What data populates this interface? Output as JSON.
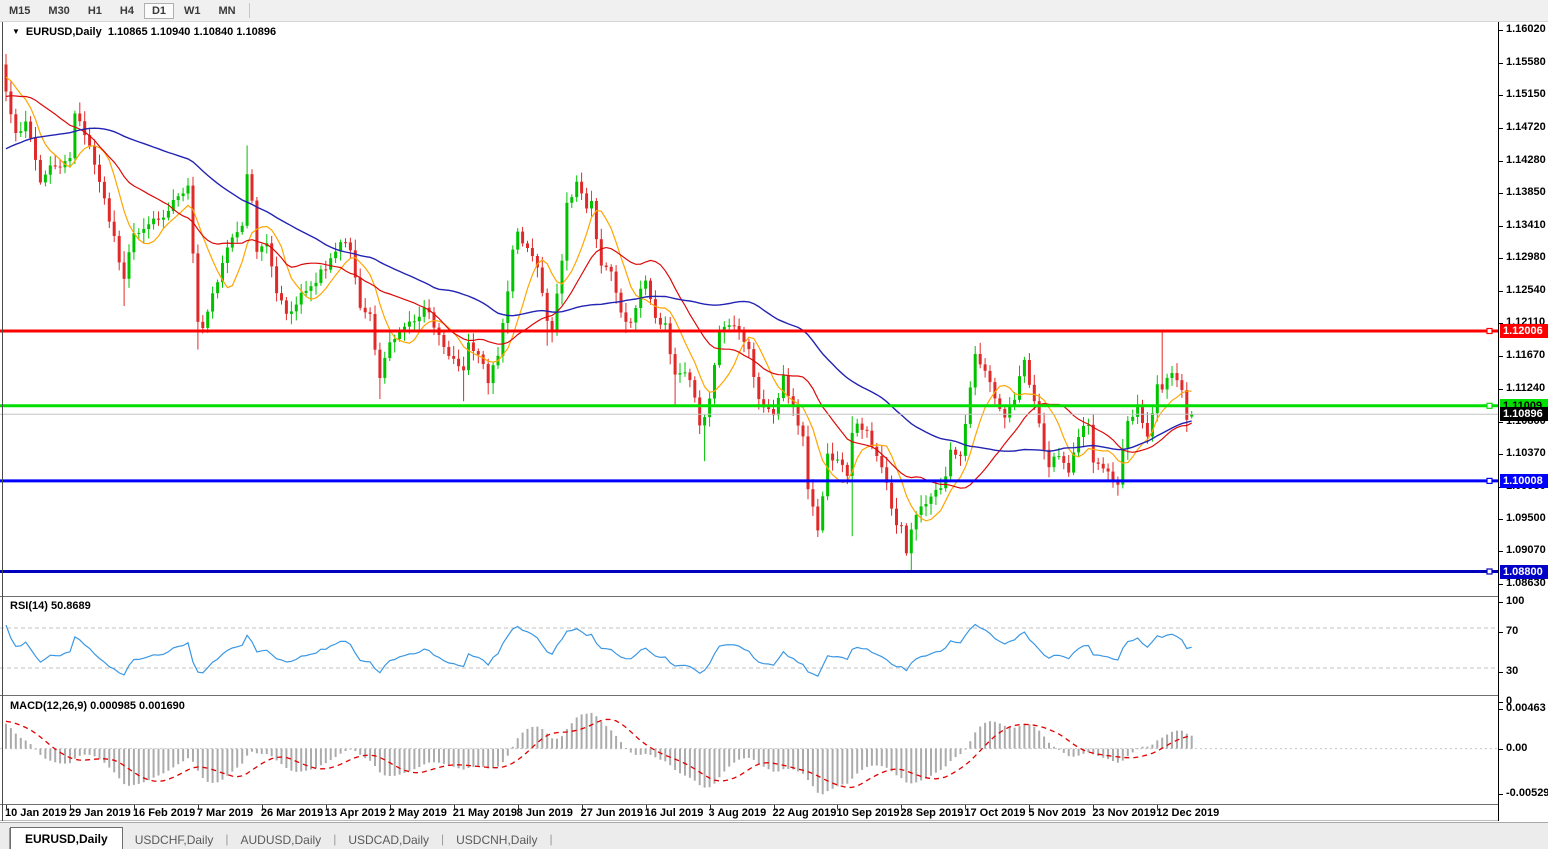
{
  "toolbar": {
    "timeframes": [
      {
        "label": "M15",
        "active": false
      },
      {
        "label": "M30",
        "active": false
      },
      {
        "label": "H1",
        "active": false
      },
      {
        "label": "H4",
        "active": false
      },
      {
        "label": "D1",
        "active": true
      },
      {
        "label": "W1",
        "active": false
      },
      {
        "label": "MN",
        "active": false
      }
    ]
  },
  "header": {
    "dropdown": "▼",
    "symbol": "EURUSD,Daily",
    "quotes": "1.10865 1.10940 1.10840 1.10896"
  },
  "tabs": [
    {
      "label": "EURUSD,Daily",
      "active": true
    },
    {
      "label": "USDCHF,Daily",
      "active": false
    },
    {
      "label": "AUDUSD,Daily",
      "active": false
    },
    {
      "label": "USDCAD,Daily",
      "active": false
    },
    {
      "label": "USDCNH,Daily",
      "active": false
    }
  ],
  "chart_data": {
    "type": "candlestick",
    "symbol": "EURUSD",
    "timeframe": "Daily",
    "ohlc_display": {
      "open": "1.10865",
      "high": "1.10940",
      "low": "1.10840",
      "close": "1.10896"
    },
    "price_axis": {
      "top_price": 1.1602,
      "bottom_price": 1.0863,
      "ticks": [
        1.1602,
        1.1558,
        1.1515,
        1.1472,
        1.1428,
        1.1385,
        1.1341,
        1.1298,
        1.1254,
        1.1211,
        1.1167,
        1.1124,
        1.108,
        1.1037,
        1.0993,
        1.095,
        1.0907,
        1.0863
      ]
    },
    "time_axis": {
      "labels": [
        {
          "text": "10 Jan 2019",
          "index": 0
        },
        {
          "text": "29 Jan 2019",
          "index": 13
        },
        {
          "text": "16 Feb 2019",
          "index": 26
        },
        {
          "text": "7 Mar 2019",
          "index": 39
        },
        {
          "text": "26 Mar 2019",
          "index": 52
        },
        {
          "text": "13 Apr 2019",
          "index": 65
        },
        {
          "text": "2 May 2019",
          "index": 78
        },
        {
          "text": "21 May 2019",
          "index": 91
        },
        {
          "text": "8 Jun 2019",
          "index": 104
        },
        {
          "text": "27 Jun 2019",
          "index": 117
        },
        {
          "text": "16 Jul 2019",
          "index": 130
        },
        {
          "text": "3 Aug 2019",
          "index": 143
        },
        {
          "text": "22 Aug 2019",
          "index": 156
        },
        {
          "text": "10 Sep 2019",
          "index": 169
        },
        {
          "text": "28 Sep 2019",
          "index": 182
        },
        {
          "text": "17 Oct 2019",
          "index": 195
        },
        {
          "text": "5 Nov 2019",
          "index": 208
        },
        {
          "text": "23 Nov 2019",
          "index": 221
        },
        {
          "text": "12 Dec 2019",
          "index": 234
        }
      ]
    },
    "horizontal_lines": [
      {
        "price": 1.12006,
        "color": "#FF0000",
        "badge": "1.12006",
        "badge_bg": "#FF0000",
        "text_color": "#FFFFFF"
      },
      {
        "price": 1.11009,
        "color": "#00DF00",
        "badge": "1.11009",
        "badge_bg": "#00DF00",
        "text_color": "#000000"
      },
      {
        "price": 1.10008,
        "color": "#0000FF",
        "badge": "1.10008",
        "badge_bg": "#0000FF",
        "text_color": "#FFFFFF"
      },
      {
        "price": 1.088,
        "color": "#0000BE",
        "badge": "1.08800",
        "badge_bg": "#0000C8",
        "text_color": "#FFFFFF"
      }
    ],
    "current_price": {
      "value": 1.10896,
      "badge": "1.10896",
      "line_color": "#C4C4C4",
      "badge_bg": "#000000",
      "text_color": "#FFFFFF"
    },
    "moving_averages": [
      {
        "period": 8,
        "color": "#FFA500"
      },
      {
        "period": 20,
        "color": "#DC0A0A"
      },
      {
        "period": 50,
        "color": "#2323B4"
      }
    ],
    "candles": {
      "count": 242,
      "bull_color": "#00C300",
      "bear_color": "#E02A2A",
      "first_open": 1.1556,
      "last_candle": [
        1.10865,
        1.1094,
        1.1084,
        1.10896
      ],
      "anchors": [
        [
          0,
          1.152
        ],
        [
          2,
          1.1465
        ],
        [
          4,
          1.1478
        ],
        [
          7,
          1.14
        ],
        [
          10,
          1.1422
        ],
        [
          13,
          1.1432
        ],
        [
          14,
          1.149
        ],
        [
          16,
          1.1462
        ],
        [
          19,
          1.14
        ],
        [
          22,
          1.1325
        ],
        [
          24,
          1.1268
        ],
        [
          26,
          1.1333
        ],
        [
          29,
          1.1342
        ],
        [
          31,
          1.1348
        ],
        [
          33,
          1.1362
        ],
        [
          36,
          1.1386
        ],
        [
          37,
          1.1396
        ],
        [
          38,
          1.1305
        ],
        [
          39,
          1.1215
        ],
        [
          40,
          1.1205
        ],
        [
          42,
          1.125
        ],
        [
          44,
          1.1292
        ],
        [
          46,
          1.1325
        ],
        [
          48,
          1.1342
        ],
        [
          49,
          1.141
        ],
        [
          50,
          1.1372
        ],
        [
          51,
          1.1308
        ],
        [
          53,
          1.1318
        ],
        [
          55,
          1.1252
        ],
        [
          57,
          1.1222
        ],
        [
          60,
          1.1252
        ],
        [
          63,
          1.1266
        ],
        [
          66,
          1.13
        ],
        [
          68,
          1.132
        ],
        [
          70,
          1.1306
        ],
        [
          72,
          1.1232
        ],
        [
          74,
          1.1224
        ],
        [
          76,
          1.114
        ],
        [
          78,
          1.1186
        ],
        [
          80,
          1.12
        ],
        [
          83,
          1.1212
        ],
        [
          85,
          1.1234
        ],
        [
          87,
          1.1206
        ],
        [
          89,
          1.118
        ],
        [
          91,
          1.1162
        ],
        [
          93,
          1.115
        ],
        [
          94,
          1.1186
        ],
        [
          96,
          1.117
        ],
        [
          98,
          1.1132
        ],
        [
          100,
          1.117
        ],
        [
          102,
          1.1256
        ],
        [
          103,
          1.131
        ],
        [
          104,
          1.1334
        ],
        [
          106,
          1.131
        ],
        [
          108,
          1.1286
        ],
        [
          110,
          1.1216
        ],
        [
          111,
          1.12
        ],
        [
          112,
          1.1252
        ],
        [
          113,
          1.1296
        ],
        [
          114,
          1.137
        ],
        [
          116,
          1.14
        ],
        [
          118,
          1.1366
        ],
        [
          119,
          1.1372
        ],
        [
          121,
          1.1286
        ],
        [
          123,
          1.128
        ],
        [
          125,
          1.1226
        ],
        [
          127,
          1.1212
        ],
        [
          129,
          1.1256
        ],
        [
          130,
          1.1268
        ],
        [
          132,
          1.1216
        ],
        [
          134,
          1.121
        ],
        [
          136,
          1.1142
        ],
        [
          137,
          1.1146
        ],
        [
          139,
          1.1136
        ],
        [
          141,
          1.1076
        ],
        [
          142,
          1.1086
        ],
        [
          143,
          1.111
        ],
        [
          145,
          1.12
        ],
        [
          147,
          1.1206
        ],
        [
          149,
          1.12
        ],
        [
          151,
          1.1176
        ],
        [
          153,
          1.111
        ],
        [
          155,
          1.1096
        ],
        [
          156,
          1.1086
        ],
        [
          158,
          1.114
        ],
        [
          160,
          1.11
        ],
        [
          162,
          1.106
        ],
        [
          163,
          1.099
        ],
        [
          165,
          1.0936
        ],
        [
          167,
          1.1035
        ],
        [
          169,
          1.103
        ],
        [
          171,
          1.1006
        ],
        [
          172,
          1.1064
        ],
        [
          173,
          1.1076
        ],
        [
          175,
          1.107
        ],
        [
          177,
          1.1032
        ],
        [
          179,
          1.0996
        ],
        [
          181,
          1.0942
        ],
        [
          182,
          1.094
        ],
        [
          183,
          1.0902
        ],
        [
          184,
          1.0934
        ],
        [
          186,
          1.0966
        ],
        [
          188,
          1.098
        ],
        [
          190,
          1.099
        ],
        [
          191,
          1.1005
        ],
        [
          192,
          1.104
        ],
        [
          194,
          1.1032
        ],
        [
          195,
          1.1076
        ],
        [
          196,
          1.1126
        ],
        [
          197,
          1.117
        ],
        [
          199,
          1.115
        ],
        [
          201,
          1.1112
        ],
        [
          203,
          1.1086
        ],
        [
          205,
          1.111
        ],
        [
          207,
          1.1162
        ],
        [
          208,
          1.113
        ],
        [
          210,
          1.1076
        ],
        [
          212,
          1.102
        ],
        [
          214,
          1.1036
        ],
        [
          216,
          1.1012
        ],
        [
          218,
          1.106
        ],
        [
          220,
          1.1076
        ],
        [
          221,
          1.1026
        ],
        [
          223,
          1.1016
        ],
        [
          225,
          1.1
        ],
        [
          226,
          1.0996
        ],
        [
          228,
          1.108
        ],
        [
          230,
          1.11
        ],
        [
          232,
          1.1062
        ],
        [
          233,
          1.1092
        ],
        [
          234,
          1.113
        ],
        [
          235,
          1.1122
        ],
        [
          237,
          1.1146
        ],
        [
          239,
          1.112
        ],
        [
          240,
          1.1082
        ],
        [
          241,
          1.10896
        ]
      ],
      "wick_overrides": [
        [
          0,
          "high",
          1.157
        ],
        [
          24,
          "low",
          1.1234
        ],
        [
          39,
          "low",
          1.1176
        ],
        [
          49,
          "high",
          1.1448
        ],
        [
          76,
          "low",
          1.111
        ],
        [
          93,
          "low",
          1.1107
        ],
        [
          98,
          "low",
          1.1116
        ],
        [
          110,
          "low",
          1.1181
        ],
        [
          136,
          "low",
          1.1101
        ],
        [
          142,
          "low",
          1.1027
        ],
        [
          165,
          "low",
          1.0926
        ],
        [
          172,
          "low",
          1.0927
        ],
        [
          172,
          "high",
          1.1087
        ],
        [
          184,
          "low",
          1.0879
        ],
        [
          226,
          "low",
          1.0981
        ],
        [
          235,
          "high",
          1.1199
        ],
        [
          240,
          "low",
          1.1066
        ]
      ]
    },
    "rsi": {
      "label": "RSI(14)",
      "value": "50.8689",
      "period": 14,
      "line_color": "#3B97E3",
      "levels": [
        {
          "text": "100",
          "value": 100
        },
        {
          "text": "70",
          "value": 70
        },
        {
          "text": "30",
          "value": 30
        },
        {
          "text": "0",
          "value": 0
        }
      ],
      "dashed_levels": [
        70,
        30
      ]
    },
    "macd": {
      "label": "MACD(12,26,9)",
      "values": "0.000985 0.001690",
      "fast": 12,
      "slow": 26,
      "signal": 9,
      "histogram_color": "#ABABAB",
      "signal_color": "#E00000",
      "scale": [
        {
          "text": "0.00463",
          "value": 0.00463
        },
        {
          "text": "0.00",
          "value": 0
        },
        {
          "text": "-0.005299",
          "value": -0.005299
        }
      ]
    }
  }
}
